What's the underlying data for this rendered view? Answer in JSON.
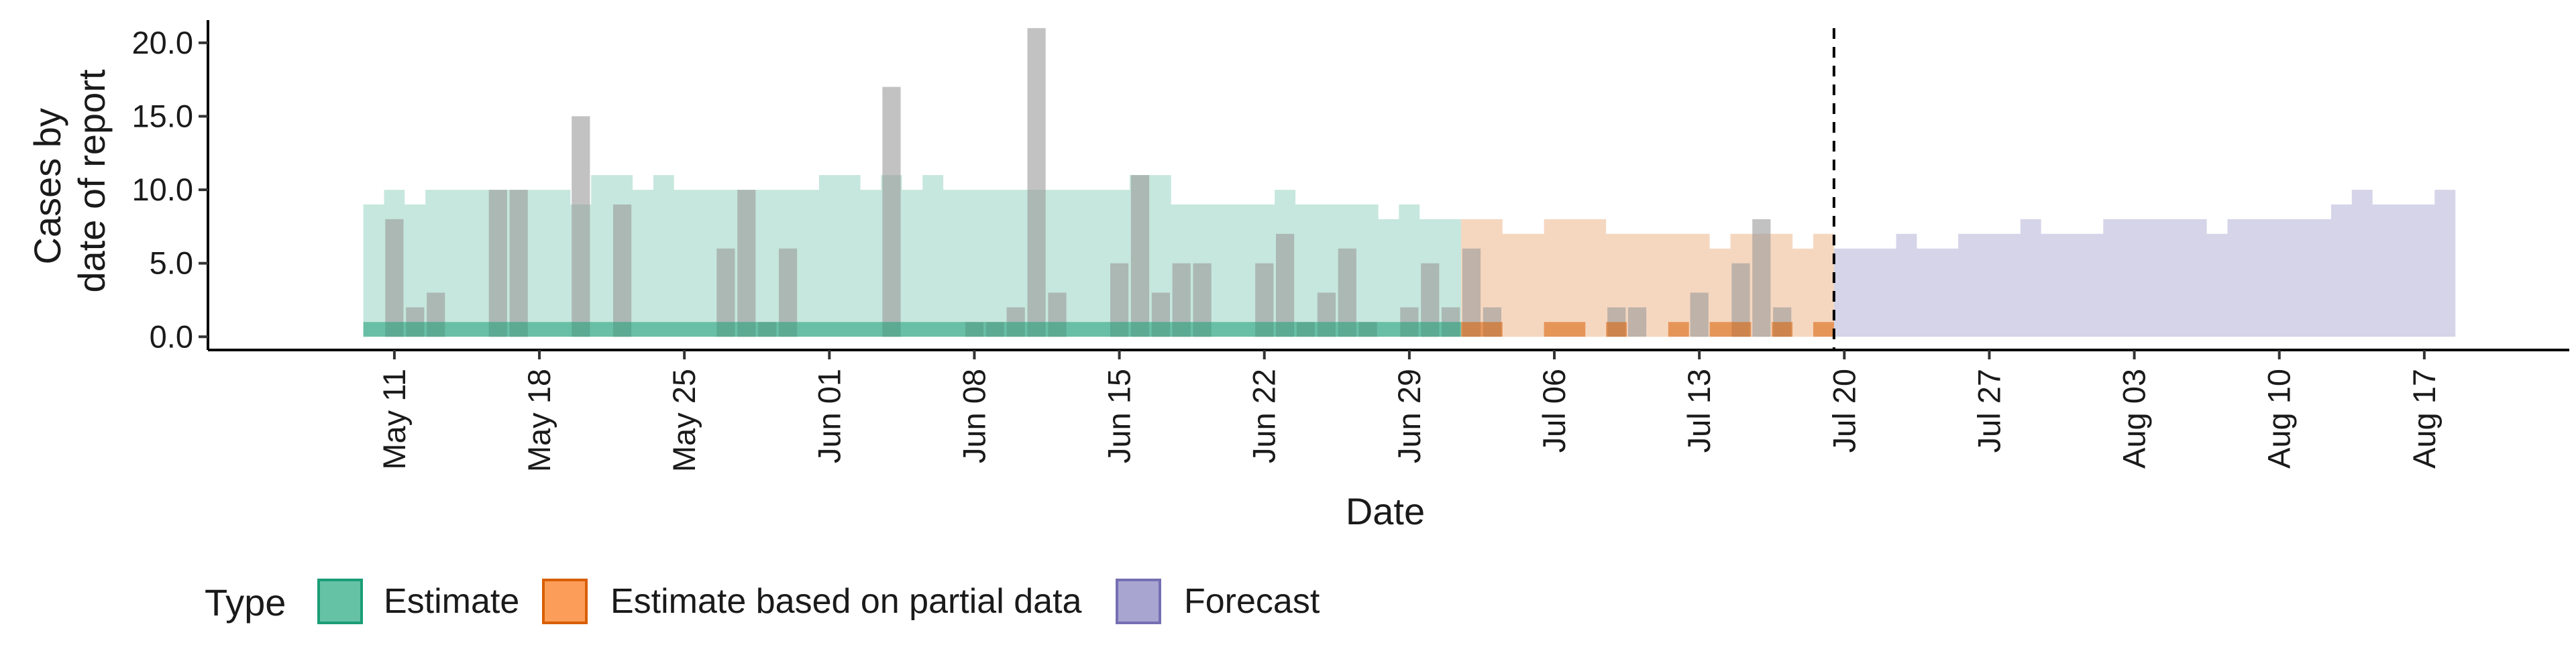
{
  "chart_data": {
    "type": "area",
    "title": "",
    "xlabel": "Date",
    "ylabel_lines": [
      "Cases by",
      "date of report"
    ],
    "x_type": "date",
    "xlim": [
      "2020-05-02",
      "2020-08-24"
    ],
    "ylim": [
      -0.9,
      22.0
    ],
    "y_ticks": [
      0.0,
      5.0,
      10.0,
      15.0,
      20.0
    ],
    "y_tick_labels": [
      "0.0",
      "5.0",
      "10.0",
      "15.0",
      "20.0"
    ],
    "x_ticks": [
      "2020-05-11",
      "2020-05-18",
      "2020-05-25",
      "2020-06-01",
      "2020-06-08",
      "2020-06-15",
      "2020-06-22",
      "2020-06-29",
      "2020-07-06",
      "2020-07-13",
      "2020-07-20",
      "2020-07-27",
      "2020-08-03",
      "2020-08-10",
      "2020-08-17"
    ],
    "x_tick_labels": [
      "May 11",
      "May 18",
      "May 25",
      "Jun 01",
      "Jun 08",
      "Jun 15",
      "Jun 22",
      "Jun 29",
      "Jul 06",
      "Jul 13",
      "Jul 20",
      "Jul 27",
      "Aug 03",
      "Aug 10",
      "Aug 17"
    ],
    "grid": false,
    "legend_position": "bottom-left",
    "vline_date": "2020-07-19",
    "legend": {
      "title": "Type",
      "items": [
        {
          "label": "Estimate",
          "fill": "#66c2a5",
          "stroke": "#1b9e77"
        },
        {
          "label": "Estimate based on partial data",
          "fill": "#fc9d5a",
          "stroke": "#d95f02"
        },
        {
          "label": "Forecast",
          "fill": "#a8a5d1",
          "stroke": "#7570b3"
        }
      ]
    },
    "colors": {
      "estimate": "#1b9e77",
      "partial": "#d95f02",
      "forecast": "#7570b3",
      "observed_bar": "#999999"
    },
    "observed_cases": {
      "dates": [
        "2020-05-10",
        "2020-05-11",
        "2020-05-12",
        "2020-05-13",
        "2020-05-14",
        "2020-05-15",
        "2020-05-16",
        "2020-05-17",
        "2020-05-18",
        "2020-05-19",
        "2020-05-20",
        "2020-05-21",
        "2020-05-22",
        "2020-05-23",
        "2020-05-24",
        "2020-05-25",
        "2020-05-26",
        "2020-05-27",
        "2020-05-28",
        "2020-05-29",
        "2020-05-30",
        "2020-05-31",
        "2020-06-01",
        "2020-06-02",
        "2020-06-03",
        "2020-06-04",
        "2020-06-05",
        "2020-06-06",
        "2020-06-07",
        "2020-06-08",
        "2020-06-09",
        "2020-06-10",
        "2020-06-11",
        "2020-06-12",
        "2020-06-13",
        "2020-06-14",
        "2020-06-15",
        "2020-06-16",
        "2020-06-17",
        "2020-06-18",
        "2020-06-19",
        "2020-06-20",
        "2020-06-21",
        "2020-06-22",
        "2020-06-23",
        "2020-06-24",
        "2020-06-25",
        "2020-06-26",
        "2020-06-27",
        "2020-06-28",
        "2020-06-29",
        "2020-06-30",
        "2020-07-01",
        "2020-07-02",
        "2020-07-03",
        "2020-07-04",
        "2020-07-05",
        "2020-07-06",
        "2020-07-07",
        "2020-07-08",
        "2020-07-09",
        "2020-07-10",
        "2020-07-11",
        "2020-07-12",
        "2020-07-13",
        "2020-07-14",
        "2020-07-15",
        "2020-07-16",
        "2020-07-17",
        "2020-07-18"
      ],
      "values": [
        0,
        8,
        2,
        3,
        0,
        0,
        10,
        10,
        0,
        0,
        15,
        0,
        9,
        0,
        0,
        0,
        0,
        6,
        10,
        1,
        6,
        0,
        0,
        0,
        0,
        17,
        0,
        0,
        0,
        1,
        1,
        2,
        21,
        3,
        0,
        0,
        5,
        11,
        3,
        5,
        5,
        0,
        0,
        5,
        7,
        1,
        3,
        6,
        1,
        0,
        2,
        5,
        2,
        6,
        2,
        0,
        0,
        0,
        0,
        0,
        2,
        2,
        0,
        0,
        3,
        0,
        5,
        8,
        2,
        0
      ]
    },
    "estimate_band": {
      "dates": [
        "2020-05-10",
        "2020-05-11",
        "2020-05-12",
        "2020-05-13",
        "2020-05-14",
        "2020-05-15",
        "2020-05-16",
        "2020-05-17",
        "2020-05-18",
        "2020-05-19",
        "2020-05-20",
        "2020-05-21",
        "2020-05-22",
        "2020-05-23",
        "2020-05-24",
        "2020-05-25",
        "2020-05-26",
        "2020-05-27",
        "2020-05-28",
        "2020-05-29",
        "2020-05-30",
        "2020-05-31",
        "2020-06-01",
        "2020-06-02",
        "2020-06-03",
        "2020-06-04",
        "2020-06-05",
        "2020-06-06",
        "2020-06-07",
        "2020-06-08",
        "2020-06-09",
        "2020-06-10",
        "2020-06-11",
        "2020-06-12",
        "2020-06-13",
        "2020-06-14",
        "2020-06-15",
        "2020-06-16",
        "2020-06-17",
        "2020-06-18",
        "2020-06-19",
        "2020-06-20",
        "2020-06-21",
        "2020-06-22",
        "2020-06-23",
        "2020-06-24",
        "2020-06-25",
        "2020-06-26",
        "2020-06-27",
        "2020-06-28",
        "2020-06-29",
        "2020-06-30",
        "2020-07-01"
      ],
      "upper": [
        9,
        10,
        9,
        10,
        10,
        10,
        10,
        10,
        10,
        10,
        9,
        11,
        11,
        10,
        11,
        10,
        10,
        10,
        10,
        10,
        10,
        10,
        11,
        11,
        10,
        11,
        10,
        11,
        10,
        10,
        10,
        10,
        10,
        10,
        10,
        10,
        10,
        11,
        11,
        9,
        9,
        9,
        9,
        9,
        10,
        9,
        9,
        9,
        9,
        8,
        9,
        8,
        8
      ],
      "lower_inner_upper": 1,
      "lower_inner_lower": 0
    },
    "partial_band": {
      "dates": [
        "2020-07-02",
        "2020-07-03",
        "2020-07-04",
        "2020-07-05",
        "2020-07-06",
        "2020-07-07",
        "2020-07-08",
        "2020-07-09",
        "2020-07-10",
        "2020-07-11",
        "2020-07-12",
        "2020-07-13",
        "2020-07-14",
        "2020-07-15",
        "2020-07-16",
        "2020-07-17",
        "2020-07-18",
        "2020-07-19"
      ],
      "upper": [
        8,
        8,
        7,
        7,
        8,
        8,
        8,
        7,
        7,
        7,
        7,
        7,
        6,
        7,
        7,
        7,
        6,
        7
      ],
      "inner_upper": [
        1,
        1,
        0,
        0,
        1,
        1,
        0,
        1,
        0,
        0,
        1,
        0,
        1,
        1,
        0,
        1,
        0,
        1
      ]
    },
    "forecast_band": {
      "dates": [
        "2020-07-20",
        "2020-07-21",
        "2020-07-22",
        "2020-07-23",
        "2020-07-24",
        "2020-07-25",
        "2020-07-26",
        "2020-07-27",
        "2020-07-28",
        "2020-07-29",
        "2020-07-30",
        "2020-07-31",
        "2020-08-01",
        "2020-08-02",
        "2020-08-03",
        "2020-08-04",
        "2020-08-05",
        "2020-08-06",
        "2020-08-07",
        "2020-08-08",
        "2020-08-09",
        "2020-08-10",
        "2020-08-11",
        "2020-08-12",
        "2020-08-13",
        "2020-08-14",
        "2020-08-15",
        "2020-08-16",
        "2020-08-17",
        "2020-08-18"
      ],
      "upper": [
        6,
        6,
        6,
        7,
        6,
        6,
        7,
        7,
        7,
        8,
        7,
        7,
        7,
        8,
        8,
        8,
        8,
        8,
        7,
        8,
        8,
        8,
        8,
        8,
        9,
        10,
        9,
        9,
        9,
        10
      ],
      "lower": 0
    }
  }
}
